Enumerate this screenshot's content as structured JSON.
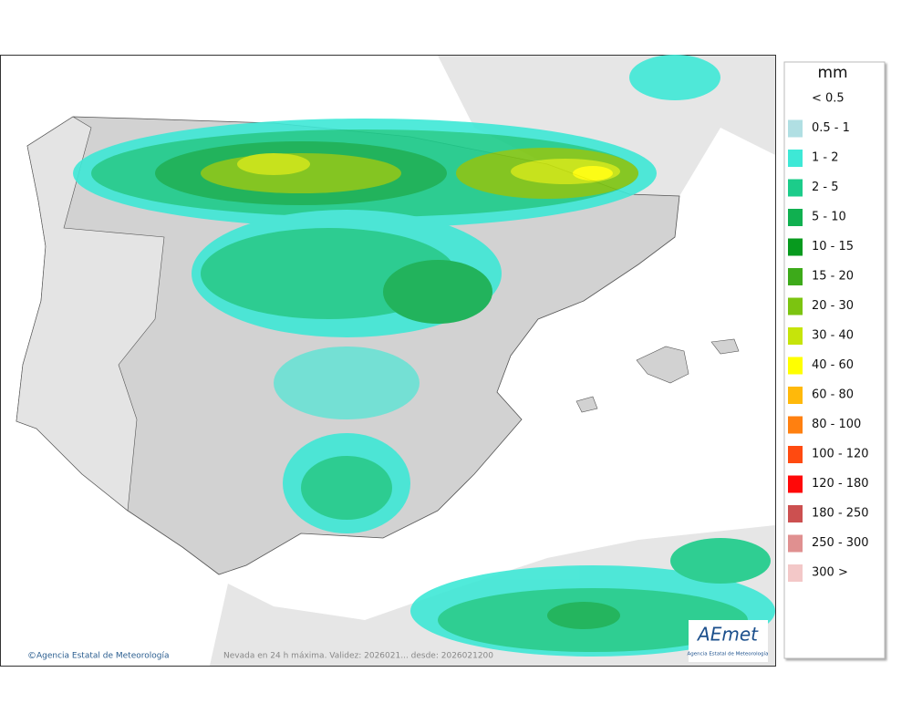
{
  "legend": {
    "title": "mm",
    "items": [
      {
        "label": "< 0.5",
        "color": "#ffffff"
      },
      {
        "label": "0.5 - 1",
        "color": "#b0dfe3"
      },
      {
        "label": "1 - 2",
        "color": "#3ee8d6"
      },
      {
        "label": "2 - 5",
        "color": "#1ccc8a"
      },
      {
        "label": "5 - 10",
        "color": "#10b050"
      },
      {
        "label": "10 - 15",
        "color": "#079a1e"
      },
      {
        "label": "15 - 20",
        "color": "#3daa1a"
      },
      {
        "label": "20 - 30",
        "color": "#7cc410"
      },
      {
        "label": "30 - 40",
        "color": "#c6e40a"
      },
      {
        "label": "40 - 60",
        "color": "#ffff00"
      },
      {
        "label": "60 - 80",
        "color": "#ffb90a"
      },
      {
        "label": "80 - 100",
        "color": "#ff8010"
      },
      {
        "label": "100 - 120",
        "color": "#ff4a10"
      },
      {
        "label": "120 - 180",
        "color": "#ff0808"
      },
      {
        "label": "180 - 250",
        "color": "#cc5050"
      },
      {
        "label": "250 - 300",
        "color": "#e09090"
      },
      {
        "label": "300 >",
        "color": "#f3c8c8"
      }
    ]
  },
  "footer": {
    "credit": "Agencia Estatal de Meteorología",
    "caption": "Nevada en 24 h máxima. Validez: 2026021... desde: 2026021200"
  },
  "logo": {
    "name": "AEmet",
    "subtitle": "Agencia Estatal de Meteorología"
  }
}
